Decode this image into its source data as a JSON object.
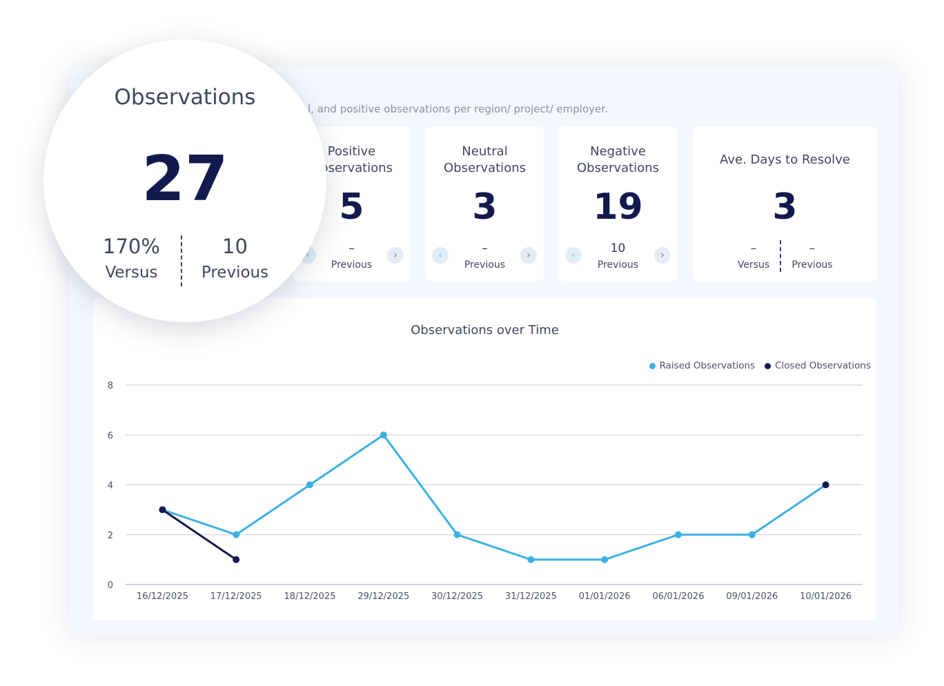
{
  "header": {
    "subtitle": "l, and positive observations per region/ project/ employer."
  },
  "summary": {
    "title": "Observations",
    "value": "27",
    "versus_value": "170%",
    "versus_label": "Versus",
    "previous_value": "10",
    "previous_label": "Previous"
  },
  "cards": [
    {
      "title": "Positive Observations",
      "value": "5",
      "previous_value": "–",
      "previous_label": "Previous",
      "prev_icon": "chevron-left-icon",
      "next_icon": "chevron-right-icon"
    },
    {
      "title": "Neutral Observations",
      "value": "3",
      "previous_value": "–",
      "previous_label": "Previous",
      "prev_icon": "chevron-left-icon",
      "next_icon": "chevron-right-icon"
    },
    {
      "title": "Negative Observations",
      "value": "19",
      "previous_value": "10",
      "previous_label": "Previous",
      "prev_icon": "chevron-left-icon",
      "next_icon": "chevron-right-icon"
    }
  ],
  "resolve": {
    "title": "Ave. Days to Resolve",
    "value": "3",
    "versus_value": "–",
    "versus_label": "Versus",
    "previous_value": "–",
    "previous_label": "Previous"
  },
  "colors": {
    "raised": "#3bb0e3",
    "closed": "#121a4d",
    "value": "#121a4d"
  },
  "chart_data": {
    "type": "line",
    "title": "Observations over Time",
    "categories": [
      "16/12/2025",
      "17/12/2025",
      "18/12/2025",
      "29/12/2025",
      "30/12/2025",
      "31/12/2025",
      "01/01/2026",
      "06/01/2026",
      "09/01/2026",
      "10/01/2026"
    ],
    "series": [
      {
        "name": "Raised Observations",
        "color": "#3bb0e3",
        "values": [
          3,
          2,
          4,
          6,
          2,
          1,
          1,
          2,
          2,
          4
        ]
      },
      {
        "name": "Closed Observations",
        "color": "#121a4d",
        "values": [
          3,
          1,
          null,
          null,
          null,
          null,
          null,
          null,
          null,
          4
        ]
      }
    ],
    "yticks": [
      0,
      2,
      4,
      6,
      8
    ],
    "ylim": [
      0,
      8
    ],
    "grid": true,
    "legend": "top-right"
  }
}
